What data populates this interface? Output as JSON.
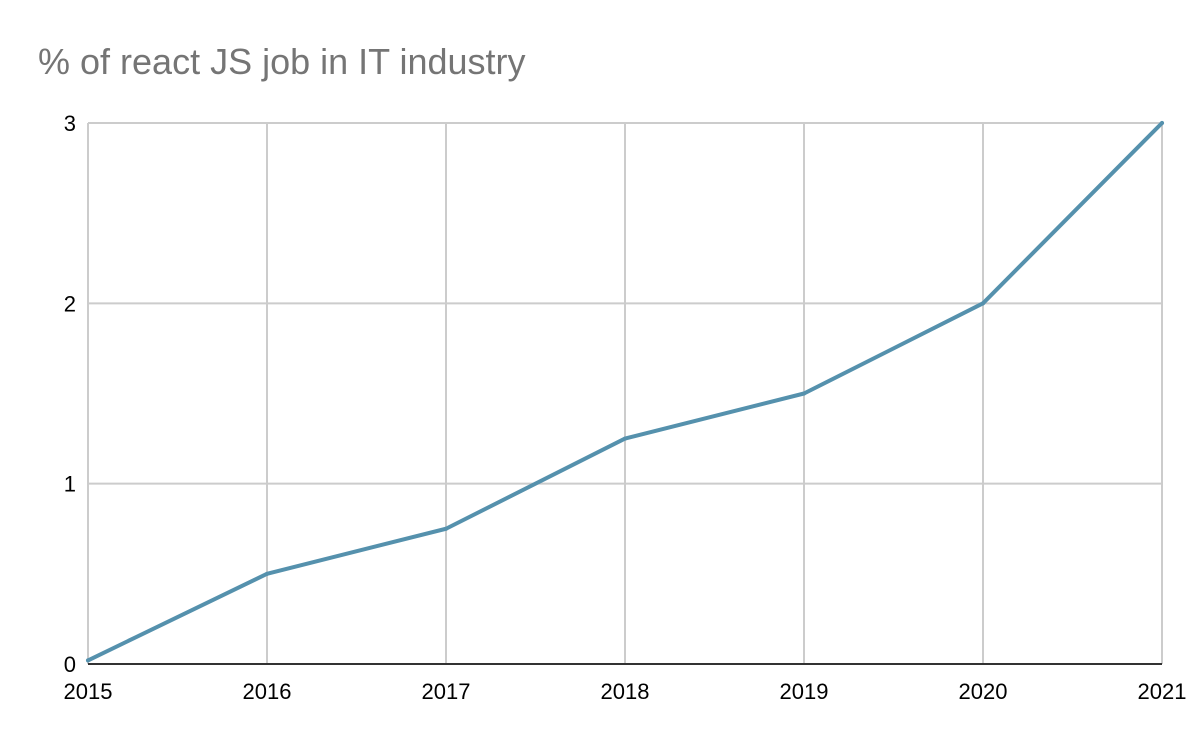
{
  "chart_data": {
    "type": "line",
    "title": "% of react JS job in IT industry",
    "xlabel": "",
    "ylabel": "",
    "categories": [
      "2015",
      "2016",
      "2017",
      "2018",
      "2019",
      "2020",
      "2021"
    ],
    "series": [
      {
        "name": "% of react JS job in IT industry",
        "values": [
          0.02,
          0.5,
          0.75,
          1.25,
          1.5,
          2,
          3
        ],
        "color": "#5591ad"
      }
    ],
    "ylim": [
      0,
      3
    ],
    "yticks": [
      "0",
      "1",
      "2",
      "3"
    ],
    "grid": true,
    "legend": "none"
  }
}
